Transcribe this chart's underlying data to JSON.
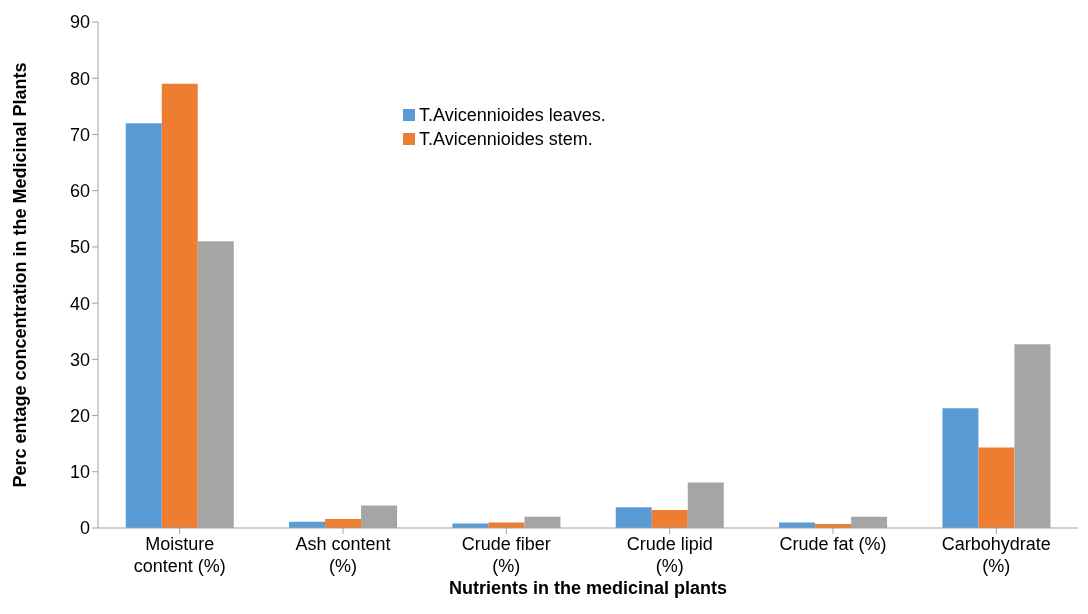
{
  "chart_data": {
    "type": "bar",
    "xlabel": "Nutrients in the medicinal plants",
    "ylabel": "Perc entage concentration in the Medicinal Plants",
    "categories": [
      "Moisture content (%)",
      "Ash content (%)",
      "Crude fiber (%)",
      "Crude lipid (%)",
      "Crude fat (%)",
      "Carbohydrate (%)"
    ],
    "series": [
      {
        "name": "T.Avicennioides leaves.",
        "color": "#5b9bd5",
        "values": [
          72,
          1.1,
          0.8,
          3.7,
          1.0,
          21.3
        ]
      },
      {
        "name": "T.Avicennioides stem.",
        "color": "#ed7d31",
        "values": [
          79,
          1.6,
          1.0,
          3.2,
          0.7,
          14.3
        ]
      },
      {
        "color": "#a5a5a5",
        "values": [
          51,
          4.0,
          2.0,
          8.1,
          2.0,
          32.7
        ]
      }
    ],
    "ylim": [
      0,
      90
    ],
    "yticks": [
      0,
      10,
      20,
      30,
      40,
      50,
      60,
      70,
      80,
      90
    ],
    "grid": false,
    "legend": "top"
  }
}
